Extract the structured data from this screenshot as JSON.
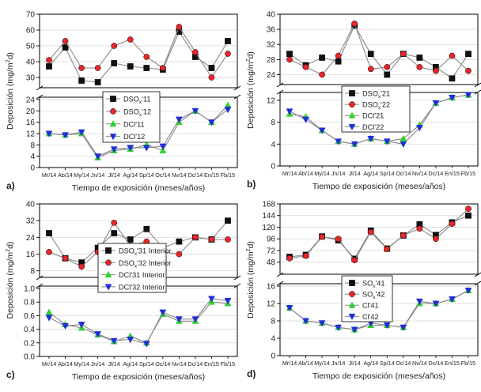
{
  "months": [
    "Mr/14",
    "Ab/14",
    "My/14",
    "Jn/14",
    "Jl/14",
    "Ag/14",
    "Sp/14",
    "Oc/14",
    "Nv/14",
    "Dc/14",
    "En/15",
    "Fb/15"
  ],
  "colors": {
    "black": "#111111",
    "red": "#e8262a",
    "green": "#2ed12e",
    "blue": "#1f2fd6",
    "gray_line": "#888888"
  },
  "chart_data": [
    {
      "panel": "a)",
      "type": "line",
      "xlabel": "Tiempo de exposición (meses/años)",
      "ylabel_main": "Deposición (mg/m",
      "ylabel_sup": "2",
      "ylabel_end": "d)",
      "upper": {
        "ylim": [
          25,
          70
        ],
        "ticks": [
          "30",
          "40",
          "50",
          "60",
          "70"
        ]
      },
      "lower": {
        "ylim": [
          0,
          24
        ],
        "ticks": [
          "0",
          "4",
          "8",
          "12",
          "16",
          "20",
          "24"
        ]
      },
      "legend": [
        {
          "base": "DSO",
          "sub": "x",
          "rest": "'11"
        },
        {
          "base": "DSO",
          "sub": "x",
          "rest": "'12"
        },
        {
          "base": "DCl'11",
          "sub": "",
          "rest": ""
        },
        {
          "base": "DCl'12",
          "sub": "",
          "rest": ""
        }
      ],
      "series": [
        {
          "name": "DSOx'11",
          "axis": "upper",
          "color": "black",
          "marker": "square",
          "values": [
            37,
            49,
            28,
            27,
            39,
            37,
            36,
            35,
            59,
            43,
            36,
            53
          ]
        },
        {
          "name": "DSOx'12",
          "axis": "upper",
          "color": "red",
          "marker": "circle",
          "values": [
            41,
            53,
            36,
            36,
            50,
            54,
            43,
            36,
            62,
            46,
            30,
            45
          ]
        },
        {
          "name": "DCl'11",
          "axis": "lower",
          "color": "green",
          "marker": "triangle-up",
          "values": [
            12,
            11.5,
            12,
            3.5,
            6,
            6.5,
            8,
            6,
            16,
            20,
            16,
            22
          ]
        },
        {
          "name": "DCl'12",
          "axis": "lower",
          "color": "blue",
          "marker": "triangle-down",
          "values": [
            12,
            11.5,
            12.5,
            4,
            6.5,
            7,
            7,
            7.5,
            17,
            20,
            16,
            20.5
          ]
        }
      ]
    },
    {
      "panel": "b)",
      "type": "line",
      "xlabel": "Tiempo de exposición (meses/años)",
      "ylabel_main": "Deposición (mg/m",
      "ylabel_sup": "2",
      "ylabel_end": "d)",
      "upper": {
        "ylim": [
          22,
          40
        ],
        "ticks": [
          "24",
          "28",
          "32",
          "36",
          "40"
        ]
      },
      "lower": {
        "ylim": [
          0,
          13
        ],
        "ticks": [
          "0",
          "4",
          "8",
          "12"
        ]
      },
      "legend": [
        {
          "base": "DSO",
          "sub": "x",
          "rest": "'21"
        },
        {
          "base": "DSO",
          "sub": "x",
          "rest": "'22"
        },
        {
          "base": "DCl'21",
          "sub": "",
          "rest": ""
        },
        {
          "base": "DCl'22",
          "sub": "",
          "rest": ""
        }
      ],
      "series": [
        {
          "name": "DSOx'21",
          "axis": "upper",
          "color": "black",
          "marker": "square",
          "values": [
            29.5,
            26.5,
            28.5,
            27.5,
            37,
            29.5,
            24,
            29.5,
            28.5,
            26,
            23,
            29.5
          ]
        },
        {
          "name": "DSOx'22",
          "axis": "upper",
          "color": "red",
          "marker": "circle",
          "values": [
            28,
            26,
            24,
            29,
            37.5,
            25.5,
            26,
            29.5,
            26,
            25,
            29,
            25
          ]
        },
        {
          "name": "DCl'21",
          "axis": "lower",
          "color": "green",
          "marker": "triangle-up",
          "values": [
            9.5,
            9,
            6.5,
            4.5,
            4,
            5,
            4.5,
            5,
            7.5,
            11.5,
            12.5,
            13
          ]
        },
        {
          "name": "DCl'22",
          "axis": "lower",
          "color": "blue",
          "marker": "triangle-down",
          "values": [
            10,
            8.5,
            6.5,
            4.5,
            4,
            5,
            4.5,
            4,
            7,
            11.5,
            12.5,
            13
          ]
        }
      ]
    },
    {
      "panel": "c)",
      "type": "line",
      "xlabel": "Tiempo de exposición (meses/años)",
      "ylabel_main": "Deposición (mg/m",
      "ylabel_sup": "2",
      "ylabel_end": "d)",
      "upper": {
        "ylim": [
          6,
          40
        ],
        "ticks": [
          "8",
          "16",
          "24",
          "32",
          "40"
        ]
      },
      "lower": {
        "ylim": [
          0,
          1
        ],
        "ticks": [
          "0.0",
          "0.2",
          "0.4",
          "0.6",
          "0.8",
          "1.0"
        ]
      },
      "legend": [
        {
          "base": "DSO",
          "sub": "x",
          "rest": "'31 Interior"
        },
        {
          "base": "DSO",
          "sub": "x",
          "rest": "'32 Interior"
        },
        {
          "base": "DCl'31 Interior",
          "sub": "",
          "rest": ""
        },
        {
          "base": "DCl'32 Interior",
          "sub": "",
          "rest": ""
        }
      ],
      "series": [
        {
          "name": "DSOx'31 Interior",
          "axis": "upper",
          "color": "black",
          "marker": "square",
          "values": [
            26,
            14,
            12,
            19,
            26,
            23,
            28,
            19,
            22,
            24,
            23,
            32
          ]
        },
        {
          "name": "DSOx'32 Interior",
          "axis": "upper",
          "color": "red",
          "marker": "circle",
          "values": [
            17,
            14,
            10,
            17,
            31,
            20,
            22,
            17,
            16,
            24,
            23,
            23
          ]
        },
        {
          "name": "DCl'31 Interior",
          "axis": "lower",
          "color": "green",
          "marker": "triangle-up",
          "values": [
            0.65,
            0.47,
            0.42,
            0.32,
            0.22,
            0.3,
            0.2,
            0.62,
            0.52,
            0.52,
            0.8,
            0.78
          ]
        },
        {
          "name": "DCl'32 Interior",
          "axis": "lower",
          "color": "blue",
          "marker": "triangle-down",
          "values": [
            0.57,
            0.45,
            0.47,
            0.33,
            0.23,
            0.25,
            0.19,
            0.65,
            0.55,
            0.55,
            0.85,
            0.82
          ]
        }
      ]
    },
    {
      "panel": "d)",
      "type": "line",
      "xlabel": "Tiempo de exposición (meses/años)",
      "ylabel_main": "Deposición (mg/m",
      "ylabel_sup": "2",
      "ylabel_end": "d)",
      "upper": {
        "ylim": [
          28,
          168
        ],
        "ticks": [
          "48",
          "72",
          "96",
          "120",
          "144",
          "168"
        ]
      },
      "lower": {
        "ylim": [
          0,
          16
        ],
        "ticks": [
          "0",
          "4",
          "8",
          "12",
          "16"
        ]
      },
      "legend": [
        {
          "base": "SO",
          "sub": "x",
          "rest": "'41"
        },
        {
          "base": "SO",
          "sub": "x",
          "rest": "'42"
        },
        {
          "base": "Cl'41",
          "sub": "",
          "rest": ""
        },
        {
          "base": "Cl'42",
          "sub": "",
          "rest": ""
        }
      ],
      "series": [
        {
          "name": "SOx'41",
          "axis": "upper",
          "color": "black",
          "marker": "square",
          "values": [
            59,
            63,
            101,
            93,
            55,
            113,
            76,
            103,
            126,
            104,
            130,
            144
          ]
        },
        {
          "name": "SOx'42",
          "axis": "upper",
          "color": "red",
          "marker": "circle",
          "values": [
            56,
            61,
            100,
            96,
            52,
            110,
            75,
            103,
            117,
            96,
            127,
            158
          ]
        },
        {
          "name": "Cl'41",
          "axis": "lower",
          "color": "green",
          "marker": "triangle-up",
          "values": [
            11,
            8,
            7.5,
            6.5,
            6,
            7,
            7,
            6.5,
            12,
            12,
            13,
            15
          ]
        },
        {
          "name": "Cl'42",
          "axis": "lower",
          "color": "blue",
          "marker": "triangle-down",
          "values": [
            11,
            8,
            7.5,
            6.5,
            6,
            7.5,
            7,
            6.5,
            12.5,
            12,
            13,
            15
          ]
        }
      ]
    }
  ]
}
